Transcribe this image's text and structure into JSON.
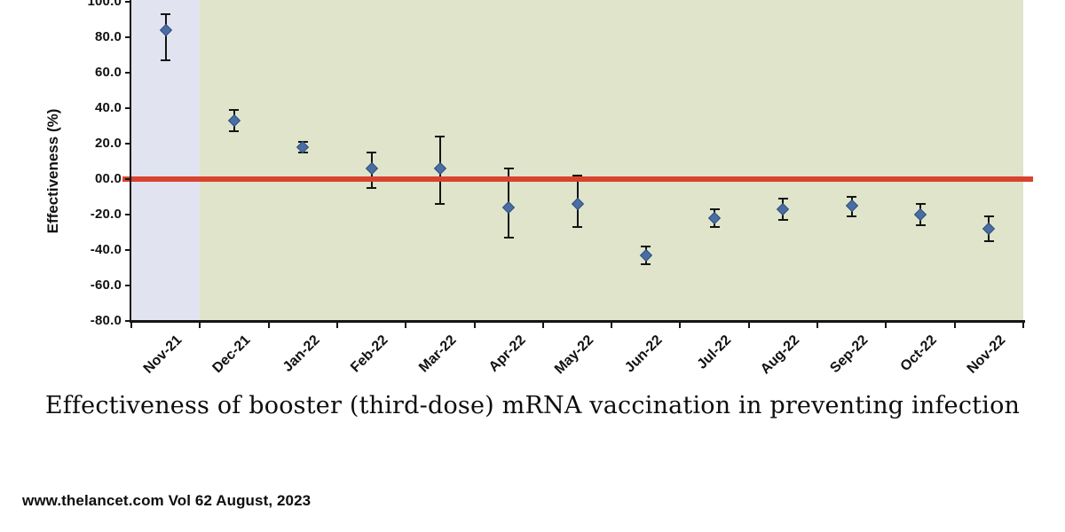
{
  "footer": {
    "text": "www.thelancet.com Vol 62 August, 2023"
  },
  "chart_data": {
    "type": "scatter",
    "title": "Effectiveness of booster (third-dose) mRNA vaccination in preventing infection",
    "ylabel": "Effectiveness (%)",
    "xlabel": "",
    "categories": [
      "Nov-21",
      "Dec-21",
      "Jan-22",
      "Feb-22",
      "Mar-22",
      "Apr-22",
      "May-22",
      "Jun-22",
      "Jul-22",
      "Aug-22",
      "Sep-22",
      "Oct-22",
      "Nov-22"
    ],
    "values": [
      84,
      33,
      18,
      6,
      6,
      -16,
      -14,
      -43,
      -22,
      -17,
      -15,
      -20,
      -28
    ],
    "ci_low": [
      67,
      27,
      15,
      -5,
      -14,
      -33,
      -27,
      -48,
      -27,
      -23,
      -21,
      -26,
      -35
    ],
    "ci_high": [
      93,
      39,
      21,
      15,
      24,
      6,
      2,
      -38,
      -17,
      -11,
      -10,
      -14,
      -21
    ],
    "ylim": [
      -80,
      100
    ],
    "ytick_values": [
      100,
      80,
      60,
      40,
      20,
      0,
      -20,
      -40,
      -60,
      -80
    ],
    "ytick_labels": [
      "100.0",
      "80.0",
      "60.0",
      "40.0",
      "20.0",
      "00.0",
      "-20.0",
      "-40.0",
      "-60.0",
      "-80.0"
    ],
    "xtick_label_rotation_deg": -45,
    "grid": false,
    "legend": false,
    "reference_line": {
      "y": 0,
      "color": "#d8432f"
    },
    "highlight_band": {
      "category": "Nov-21",
      "color": "#e2e3f0"
    },
    "plot_background": "#dfe4ca",
    "marker": {
      "shape": "diamond",
      "color": "#4a6da4"
    },
    "error_bar_color": "#141414"
  }
}
